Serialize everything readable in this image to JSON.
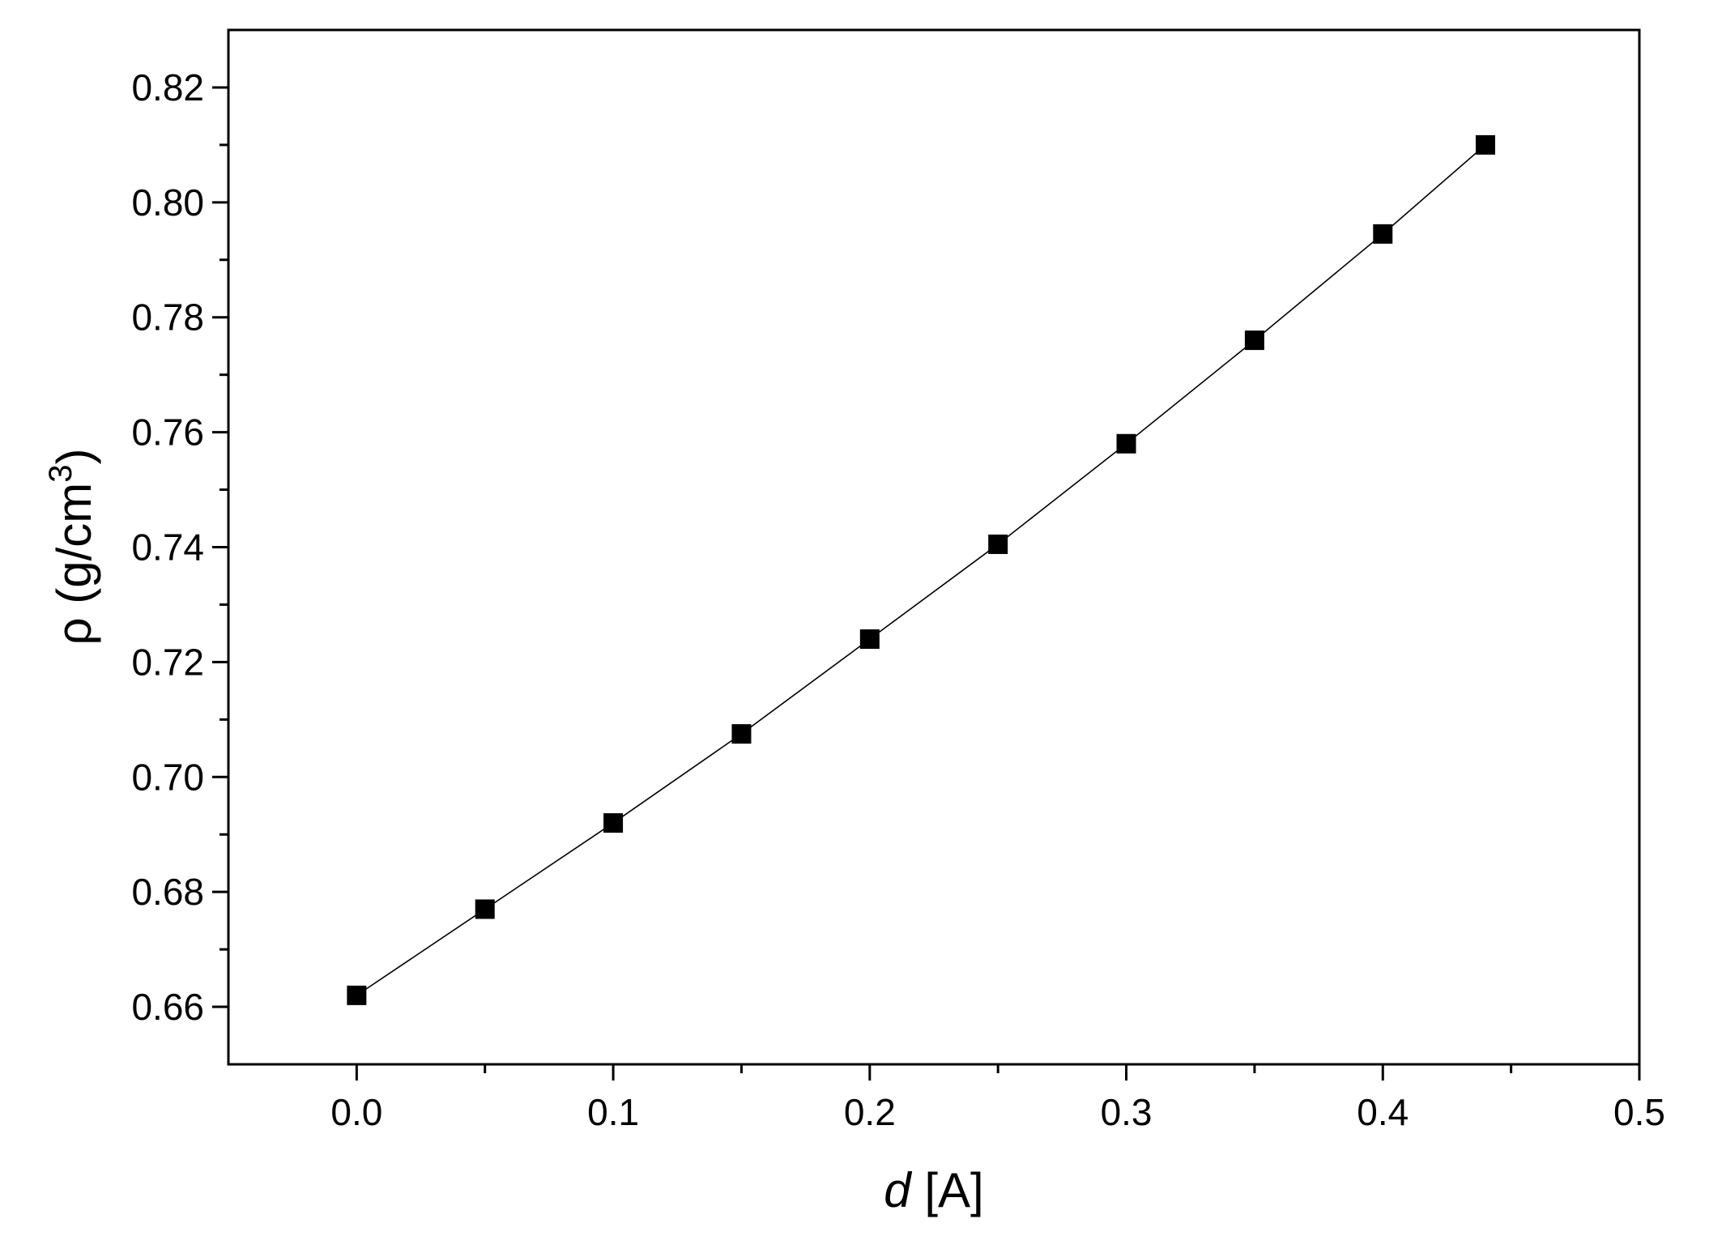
{
  "chart_data": {
    "type": "line",
    "title": "",
    "xlabel": {
      "var": "d",
      "unit": " [A]"
    },
    "ylabel": {
      "main": "ρ (g/cm",
      "sup": "3",
      "close": ")"
    },
    "xlim": [
      -0.05,
      0.5
    ],
    "ylim": [
      0.65,
      0.83
    ],
    "x_ticks": [
      {
        "v": 0.0,
        "label": "0.0"
      },
      {
        "v": 0.1,
        "label": "0.1"
      },
      {
        "v": 0.2,
        "label": "0.2"
      },
      {
        "v": 0.3,
        "label": "0.3"
      },
      {
        "v": 0.4,
        "label": "0.4"
      },
      {
        "v": 0.5,
        "label": "0.5"
      }
    ],
    "x_minor_ticks": [
      0.05,
      0.15,
      0.25,
      0.35,
      0.45
    ],
    "y_ticks": [
      {
        "v": 0.66,
        "label": "0.66"
      },
      {
        "v": 0.68,
        "label": "0.68"
      },
      {
        "v": 0.7,
        "label": "0.70"
      },
      {
        "v": 0.72,
        "label": "0.72"
      },
      {
        "v": 0.74,
        "label": "0.74"
      },
      {
        "v": 0.76,
        "label": "0.76"
      },
      {
        "v": 0.78,
        "label": "0.78"
      },
      {
        "v": 0.8,
        "label": "0.80"
      },
      {
        "v": 0.82,
        "label": "0.82"
      }
    ],
    "y_minor_ticks": [
      0.67,
      0.69,
      0.71,
      0.73,
      0.75,
      0.77,
      0.79,
      0.81
    ],
    "grid": false,
    "legend": "none",
    "marker": "square",
    "color": "#000000",
    "series": [
      {
        "x": [
          0.0,
          0.05,
          0.1,
          0.15,
          0.2,
          0.25,
          0.3,
          0.35,
          0.4,
          0.44
        ],
        "y": [
          0.662,
          0.677,
          0.692,
          0.7075,
          0.724,
          0.7405,
          0.758,
          0.776,
          0.7945,
          0.81
        ]
      }
    ]
  }
}
